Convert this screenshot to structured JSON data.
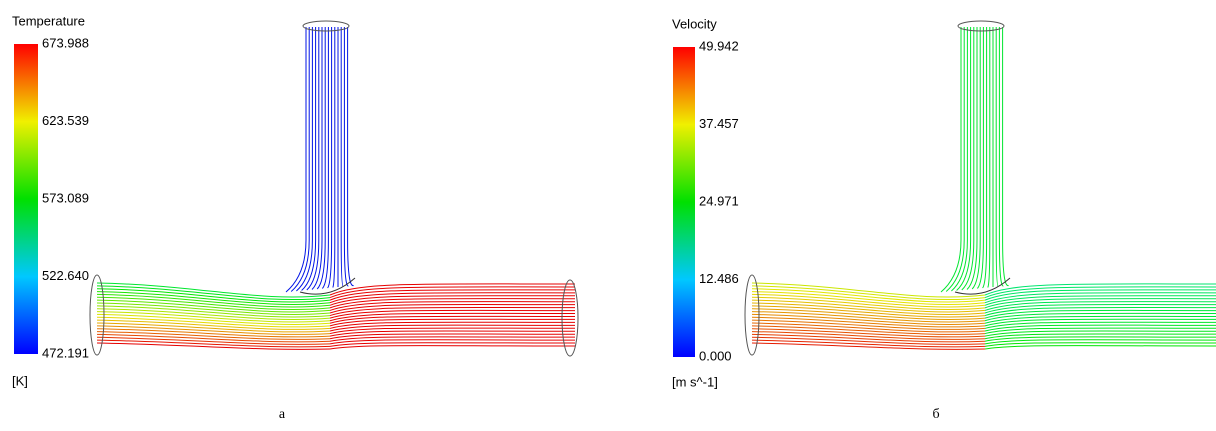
{
  "panels": [
    {
      "title": "Temperature",
      "ticks": [
        "673.988",
        "623.539",
        "573.089",
        "522.640",
        "472.191"
      ],
      "unit": "[K]",
      "caption": "a"
    },
    {
      "title": "Velocity",
      "ticks": [
        "49.942",
        "37.457",
        "24.971",
        "12.486",
        "0.000"
      ],
      "unit": "[m s^-1]",
      "caption": "б"
    }
  ]
}
